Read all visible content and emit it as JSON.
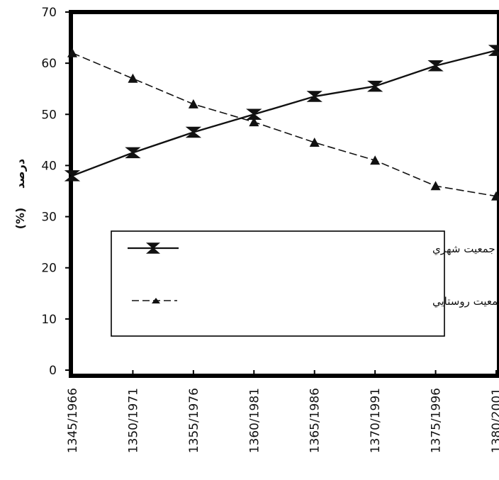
{
  "chart_data": {
    "type": "line",
    "x": [
      "1345/1966",
      "1350/1971",
      "1355/1976",
      "1360/1981",
      "1365/1986",
      "1370/1991",
      "1375/1996",
      "1380/2001"
    ],
    "ylim": [
      0,
      70
    ],
    "yticks": [
      "0",
      "10",
      "20",
      "30",
      "40",
      "50",
      "60",
      "70"
    ],
    "ylabel": "(%)",
    "ylabel_fa": "درصد",
    "grid": false,
    "legend_position": "lower-center",
    "series": [
      {
        "name": "سهم جمعیت شهري",
        "marker": "bowtie",
        "dash": "solid",
        "values": [
          38,
          42.5,
          46.5,
          50,
          53.5,
          55.5,
          59.5,
          62.5
        ]
      },
      {
        "name": "سهم جمعیت روستايي",
        "marker": "triangle",
        "dash": "dashed",
        "values": [
          62,
          57,
          52,
          48.5,
          44.5,
          41,
          36,
          34
        ]
      }
    ],
    "colors": {
      "line": "#111111",
      "frame": "#000000",
      "background": "#ffffff"
    }
  }
}
